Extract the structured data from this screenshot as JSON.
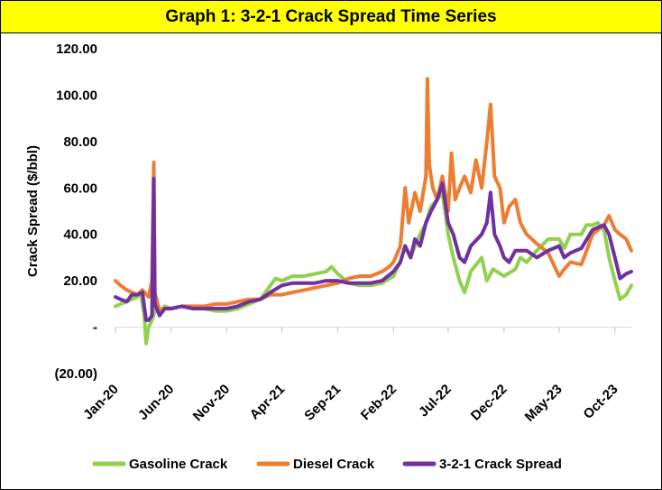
{
  "chart_data": {
    "type": "line",
    "title": "Graph 1: 3-2-1 Crack Spread Time Series",
    "title_bg": "#ffff00",
    "xlabel": "",
    "ylabel": "Crack Spread ($/bbl)",
    "ylim": [
      -20,
      120
    ],
    "yticks": [
      -20,
      0,
      20,
      40,
      60,
      80,
      100,
      120
    ],
    "ytick_labels": [
      "(20.00)",
      "-",
      "20.00",
      "40.00",
      "60.00",
      "80.00",
      "100.00",
      "120.00"
    ],
    "x_start": "2020-01-01",
    "x_end": "2023-11-15",
    "xticks": [
      {
        "date": "2020-01-01",
        "label": "Jan-20"
      },
      {
        "date": "2020-06-01",
        "label": "Jun-20"
      },
      {
        "date": "2020-11-01",
        "label": "Nov-20"
      },
      {
        "date": "2021-04-01",
        "label": "Apr-21"
      },
      {
        "date": "2021-09-01",
        "label": "Sep-21"
      },
      {
        "date": "2022-02-01",
        "label": "Feb-22"
      },
      {
        "date": "2022-07-01",
        "label": "Jul-22"
      },
      {
        "date": "2022-12-01",
        "label": "Dec-22"
      },
      {
        "date": "2023-05-01",
        "label": "May-23"
      },
      {
        "date": "2023-10-01",
        "label": "Oct-23"
      }
    ],
    "grid": false,
    "legend": "bottom",
    "series": [
      {
        "name": "Gasoline Crack",
        "color": "#92d050",
        "points": [
          [
            "2020-01-01",
            9
          ],
          [
            "2020-01-15",
            10
          ],
          [
            "2020-02-01",
            11
          ],
          [
            "2020-02-15",
            12
          ],
          [
            "2020-03-01",
            13
          ],
          [
            "2020-03-10",
            15
          ],
          [
            "2020-03-20",
            5
          ],
          [
            "2020-03-25",
            -7
          ],
          [
            "2020-04-01",
            0
          ],
          [
            "2020-04-10",
            3
          ],
          [
            "2020-04-20",
            8
          ],
          [
            "2020-05-01",
            7
          ],
          [
            "2020-05-15",
            9
          ],
          [
            "2020-06-01",
            8
          ],
          [
            "2020-07-01",
            9
          ],
          [
            "2020-08-01",
            8
          ],
          [
            "2020-09-01",
            8
          ],
          [
            "2020-10-01",
            7
          ],
          [
            "2020-11-01",
            7
          ],
          [
            "2020-12-01",
            8
          ],
          [
            "2021-01-01",
            10
          ],
          [
            "2021-02-01",
            12
          ],
          [
            "2021-03-01",
            18
          ],
          [
            "2021-03-15",
            21
          ],
          [
            "2021-04-01",
            20
          ],
          [
            "2021-05-01",
            22
          ],
          [
            "2021-06-01",
            22
          ],
          [
            "2021-07-01",
            23
          ],
          [
            "2021-08-01",
            24
          ],
          [
            "2021-08-15",
            26
          ],
          [
            "2021-09-01",
            23
          ],
          [
            "2021-10-01",
            19
          ],
          [
            "2021-11-01",
            18
          ],
          [
            "2021-12-01",
            18
          ],
          [
            "2022-01-01",
            19
          ],
          [
            "2022-02-01",
            22
          ],
          [
            "2022-02-20",
            28
          ],
          [
            "2022-03-05",
            35
          ],
          [
            "2022-03-20",
            30
          ],
          [
            "2022-04-01",
            35
          ],
          [
            "2022-04-15",
            40
          ],
          [
            "2022-05-01",
            45
          ],
          [
            "2022-05-15",
            52
          ],
          [
            "2022-06-01",
            55
          ],
          [
            "2022-06-15",
            58
          ],
          [
            "2022-07-01",
            40
          ],
          [
            "2022-07-15",
            30
          ],
          [
            "2022-08-01",
            20
          ],
          [
            "2022-08-15",
            15
          ],
          [
            "2022-09-01",
            24
          ],
          [
            "2022-10-01",
            30
          ],
          [
            "2022-10-15",
            20
          ],
          [
            "2022-11-01",
            25
          ],
          [
            "2022-12-01",
            22
          ],
          [
            "2023-01-01",
            25
          ],
          [
            "2023-01-15",
            30
          ],
          [
            "2023-02-01",
            28
          ],
          [
            "2023-03-01",
            33
          ],
          [
            "2023-04-01",
            38
          ],
          [
            "2023-05-01",
            38
          ],
          [
            "2023-05-15",
            34
          ],
          [
            "2023-06-01",
            40
          ],
          [
            "2023-07-01",
            40
          ],
          [
            "2023-07-15",
            44
          ],
          [
            "2023-08-01",
            44
          ],
          [
            "2023-08-15",
            45
          ],
          [
            "2023-09-01",
            42
          ],
          [
            "2023-09-15",
            30
          ],
          [
            "2023-10-01",
            20
          ],
          [
            "2023-10-15",
            12
          ],
          [
            "2023-11-01",
            14
          ],
          [
            "2023-11-15",
            18
          ]
        ]
      },
      {
        "name": "Diesel Crack",
        "color": "#ed7d31",
        "points": [
          [
            "2020-01-01",
            20
          ],
          [
            "2020-01-15",
            18
          ],
          [
            "2020-02-01",
            16
          ],
          [
            "2020-02-15",
            15
          ],
          [
            "2020-03-01",
            14
          ],
          [
            "2020-03-15",
            16
          ],
          [
            "2020-04-01",
            13
          ],
          [
            "2020-04-10",
            20
          ],
          [
            "2020-04-15",
            71
          ],
          [
            "2020-04-18",
            15
          ],
          [
            "2020-05-01",
            7
          ],
          [
            "2020-05-15",
            8
          ],
          [
            "2020-06-01",
            8
          ],
          [
            "2020-07-01",
            9
          ],
          [
            "2020-08-01",
            9
          ],
          [
            "2020-09-01",
            9
          ],
          [
            "2020-10-01",
            10
          ],
          [
            "2020-11-01",
            10
          ],
          [
            "2020-12-01",
            11
          ],
          [
            "2021-01-01",
            12
          ],
          [
            "2021-02-01",
            12
          ],
          [
            "2021-03-01",
            14
          ],
          [
            "2021-04-01",
            14
          ],
          [
            "2021-05-01",
            15
          ],
          [
            "2021-06-01",
            16
          ],
          [
            "2021-07-01",
            17
          ],
          [
            "2021-08-01",
            18
          ],
          [
            "2021-09-01",
            19
          ],
          [
            "2021-10-01",
            21
          ],
          [
            "2021-11-01",
            22
          ],
          [
            "2021-12-01",
            22
          ],
          [
            "2022-01-01",
            24
          ],
          [
            "2022-01-20",
            26
          ],
          [
            "2022-02-01",
            28
          ],
          [
            "2022-02-20",
            35
          ],
          [
            "2022-03-05",
            60
          ],
          [
            "2022-03-15",
            45
          ],
          [
            "2022-04-01",
            58
          ],
          [
            "2022-04-15",
            50
          ],
          [
            "2022-05-01",
            65
          ],
          [
            "2022-05-05",
            107
          ],
          [
            "2022-05-10",
            70
          ],
          [
            "2022-05-20",
            60
          ],
          [
            "2022-06-01",
            55
          ],
          [
            "2022-06-15",
            65
          ],
          [
            "2022-07-01",
            50
          ],
          [
            "2022-07-10",
            75
          ],
          [
            "2022-07-20",
            55
          ],
          [
            "2022-08-01",
            60
          ],
          [
            "2022-08-15",
            65
          ],
          [
            "2022-09-01",
            58
          ],
          [
            "2022-09-15",
            72
          ],
          [
            "2022-10-01",
            60
          ],
          [
            "2022-10-15",
            80
          ],
          [
            "2022-10-25",
            96
          ],
          [
            "2022-11-05",
            65
          ],
          [
            "2022-11-20",
            60
          ],
          [
            "2022-12-01",
            45
          ],
          [
            "2022-12-15",
            52
          ],
          [
            "2023-01-01",
            55
          ],
          [
            "2023-01-15",
            45
          ],
          [
            "2023-02-01",
            40
          ],
          [
            "2023-03-01",
            36
          ],
          [
            "2023-04-01",
            32
          ],
          [
            "2023-05-01",
            22
          ],
          [
            "2023-05-15",
            25
          ],
          [
            "2023-06-01",
            28
          ],
          [
            "2023-07-01",
            27
          ],
          [
            "2023-08-01",
            40
          ],
          [
            "2023-09-01",
            44
          ],
          [
            "2023-09-15",
            48
          ],
          [
            "2023-10-01",
            42
          ],
          [
            "2023-10-15",
            40
          ],
          [
            "2023-11-01",
            38
          ],
          [
            "2023-11-15",
            33
          ]
        ]
      },
      {
        "name": "3-2-1 Crack Spread",
        "color": "#7030a0",
        "points": [
          [
            "2020-01-01",
            13
          ],
          [
            "2020-01-15",
            12
          ],
          [
            "2020-02-01",
            11
          ],
          [
            "2020-02-15",
            14
          ],
          [
            "2020-03-01",
            14
          ],
          [
            "2020-03-15",
            15
          ],
          [
            "2020-03-25",
            3
          ],
          [
            "2020-04-01",
            3
          ],
          [
            "2020-04-10",
            5
          ],
          [
            "2020-04-15",
            64
          ],
          [
            "2020-04-18",
            10
          ],
          [
            "2020-05-01",
            5
          ],
          [
            "2020-05-15",
            8
          ],
          [
            "2020-06-01",
            8
          ],
          [
            "2020-07-01",
            9
          ],
          [
            "2020-08-01",
            8
          ],
          [
            "2020-09-01",
            8
          ],
          [
            "2020-10-01",
            8
          ],
          [
            "2020-11-01",
            8
          ],
          [
            "2020-12-01",
            9
          ],
          [
            "2021-01-01",
            11
          ],
          [
            "2021-02-01",
            12
          ],
          [
            "2021-03-01",
            15
          ],
          [
            "2021-04-01",
            18
          ],
          [
            "2021-05-01",
            19
          ],
          [
            "2021-06-01",
            19
          ],
          [
            "2021-07-01",
            19
          ],
          [
            "2021-08-01",
            20
          ],
          [
            "2021-09-01",
            20
          ],
          [
            "2021-10-01",
            19
          ],
          [
            "2021-11-01",
            19
          ],
          [
            "2021-12-01",
            19
          ],
          [
            "2022-01-01",
            20
          ],
          [
            "2022-02-01",
            24
          ],
          [
            "2022-02-20",
            28
          ],
          [
            "2022-03-05",
            35
          ],
          [
            "2022-03-20",
            30
          ],
          [
            "2022-04-01",
            38
          ],
          [
            "2022-04-15",
            35
          ],
          [
            "2022-05-01",
            45
          ],
          [
            "2022-05-15",
            50
          ],
          [
            "2022-06-01",
            55
          ],
          [
            "2022-06-15",
            62
          ],
          [
            "2022-07-01",
            45
          ],
          [
            "2022-07-15",
            40
          ],
          [
            "2022-08-01",
            30
          ],
          [
            "2022-08-15",
            28
          ],
          [
            "2022-09-01",
            35
          ],
          [
            "2022-10-01",
            40
          ],
          [
            "2022-10-15",
            45
          ],
          [
            "2022-10-25",
            58
          ],
          [
            "2022-11-05",
            40
          ],
          [
            "2022-11-20",
            35
          ],
          [
            "2022-12-01",
            30
          ],
          [
            "2022-12-15",
            28
          ],
          [
            "2023-01-01",
            33
          ],
          [
            "2023-02-01",
            33
          ],
          [
            "2023-03-01",
            30
          ],
          [
            "2023-04-01",
            33
          ],
          [
            "2023-05-01",
            35
          ],
          [
            "2023-05-15",
            30
          ],
          [
            "2023-06-01",
            32
          ],
          [
            "2023-07-01",
            34
          ],
          [
            "2023-08-01",
            42
          ],
          [
            "2023-09-01",
            44
          ],
          [
            "2023-09-15",
            40
          ],
          [
            "2023-10-01",
            30
          ],
          [
            "2023-10-15",
            21
          ],
          [
            "2023-11-01",
            23
          ],
          [
            "2023-11-15",
            24
          ]
        ]
      }
    ]
  }
}
